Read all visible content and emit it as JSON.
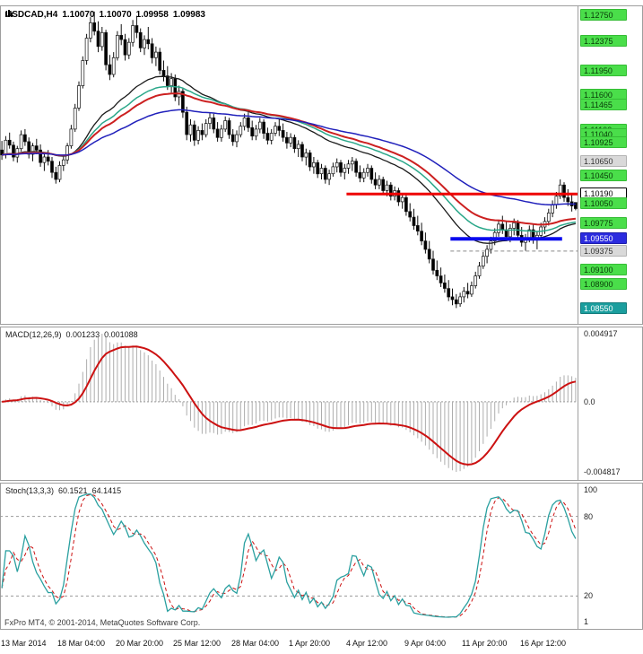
{
  "window": {
    "symbol_period": "USDCAD,H4",
    "ohlc": {
      "open": "1.10070",
      "high": "1.10070",
      "low": "1.09958",
      "close": "1.09983"
    }
  },
  "footer": {
    "copyright": "FxPro MT4, © 2001-2014, MetaQuotes Software Corp."
  },
  "indicators": {
    "macd": {
      "label": "MACD(12,26,9)",
      "value_main": "0.001233",
      "value_signal": "0.001088",
      "axis": {
        "max": "0.004917",
        "zero": "0.0",
        "min": "-0.004817"
      }
    },
    "stoch": {
      "label": "Stoch(13,3,3)",
      "value_k": "60.1521",
      "value_d": "64.1415",
      "axis_values": [
        100,
        80,
        20,
        1
      ],
      "axis_labels": [
        "100",
        "80",
        "20",
        "1"
      ],
      "level_lines": [
        80,
        20
      ]
    }
  },
  "price_axis": {
    "styles": {
      "green": {
        "bg": "#4ade4a",
        "fg": "#083a08",
        "border": "#35bc35"
      },
      "blue": {
        "bg": "#2b2bdf",
        "fg": "#ffffff",
        "border": "#1d1daa"
      },
      "teal": {
        "bg": "#1b9e9e",
        "fg": "#ffffff",
        "border": "#147c7c"
      },
      "grey": {
        "bg": "#d9d9d9",
        "fg": "#333333",
        "border": "#b3b3b3"
      },
      "white": {
        "bg": "#ffffff",
        "fg": "#000000",
        "border": "#000000"
      }
    },
    "badges": [
      {
        "value": "1.12750",
        "price": 1.1275,
        "style": "green"
      },
      {
        "value": "1.12375",
        "price": 1.12375,
        "style": "green"
      },
      {
        "value": "1.11950",
        "price": 1.1195,
        "style": "green"
      },
      {
        "value": "1.11600",
        "price": 1.116,
        "style": "green"
      },
      {
        "value": "1.11465",
        "price": 1.11465,
        "style": "green"
      },
      {
        "value": "1.11100",
        "price": 1.111,
        "style": "green"
      },
      {
        "value": "1.11040",
        "price": 1.1104,
        "style": "green"
      },
      {
        "value": "1.10925",
        "price": 1.10925,
        "style": "green"
      },
      {
        "value": "1.10650",
        "price": 1.1065,
        "style": "grey"
      },
      {
        "value": "1.10450",
        "price": 1.1045,
        "style": "green"
      },
      {
        "value": "1.10190",
        "price": 1.1019,
        "style": "white"
      },
      {
        "value": "1.10050",
        "price": 1.1005,
        "style": "green"
      },
      {
        "value": "1.09775",
        "price": 1.09775,
        "style": "green"
      },
      {
        "value": "1.09550",
        "price": 1.0955,
        "style": "blue"
      },
      {
        "value": "1.09375",
        "price": 1.09375,
        "style": "grey"
      },
      {
        "value": "1.09100",
        "price": 1.091,
        "style": "green"
      },
      {
        "value": "1.08900",
        "price": 1.089,
        "style": "green"
      },
      {
        "value": "1.08550",
        "price": 1.0855,
        "style": "teal"
      }
    ]
  },
  "time_axis": {
    "ticks": [
      {
        "bar": 0,
        "label": "13 Mar 2014"
      },
      {
        "bar": 15,
        "label": "18 Mar 04:00"
      },
      {
        "bar": 30,
        "label": "20 Mar 20:00"
      },
      {
        "bar": 45,
        "label": "25 Mar 12:00"
      },
      {
        "bar": 60,
        "label": "28 Mar 04:00"
      },
      {
        "bar": 75,
        "label": "1 Apr 20:00"
      },
      {
        "bar": 90,
        "label": "4 Apr 12:00"
      },
      {
        "bar": 105,
        "label": "9 Apr 04:00"
      },
      {
        "bar": 120,
        "label": "11 Apr 20:00"
      },
      {
        "bar": 135,
        "label": "16 Apr 12:00"
      }
    ]
  },
  "colors": {
    "background": "#ffffff",
    "panel_border": "#9e9e9e",
    "candle_up_fill": "#ffffff",
    "candle_down_fill": "#000000",
    "candle_outline": "#111111",
    "resistance_line": "#ee0000",
    "support_line": "#0b0bee",
    "dashed_level": "#8a8a8a",
    "macd_histogram": "#adadad",
    "macd_signal": "#cc1111",
    "stoch_k": "#2aa0a0",
    "stoch_d": "#cc1111",
    "grid_dash": "#9a9a9a"
  },
  "chart_data": {
    "type": "candlestick",
    "title": "USDCAD,H4",
    "symbol": "USDCAD",
    "timeframe": "H4",
    "price_range": {
      "top": 1.1285,
      "bottom": 1.0836
    },
    "moving_averages": [
      {
        "name": "ma-black",
        "period": 34,
        "color": "#1a1a1a",
        "width": 1.3
      },
      {
        "name": "ma-green",
        "period": 45,
        "color": "#2aa789",
        "width": 1.5
      },
      {
        "name": "ma-red",
        "period": 55,
        "color": "#cc2020",
        "width": 2
      },
      {
        "name": "ma-blue",
        "period": 90,
        "color": "#2020bb",
        "width": 1.5
      }
    ],
    "hlines": [
      {
        "name": "resistance",
        "price": 1.1019,
        "from_bar": 90,
        "to_bar": 150,
        "color": "#ee0000",
        "width": 3,
        "dash": false
      },
      {
        "name": "support",
        "price": 1.0955,
        "from_bar": 117,
        "to_bar": 146,
        "color": "#0b0bee",
        "width": 4,
        "dash": false
      },
      {
        "name": "minor-level",
        "price": 1.09375,
        "from_bar": 117,
        "to_bar": 150,
        "color": "#8a8a8a",
        "width": 1,
        "dash": true
      }
    ],
    "macd_params": {
      "fast": 12,
      "slow": 26,
      "signal": 9
    },
    "stoch_params": {
      "k": 13,
      "d": 3,
      "slowing": 3
    },
    "candles": [
      [
        1.1082,
        1.1095,
        1.1068,
        1.1075
      ],
      [
        1.1075,
        1.1102,
        1.107,
        1.1096
      ],
      [
        1.1096,
        1.1107,
        1.1084,
        1.1089
      ],
      [
        1.1089,
        1.1094,
        1.1066,
        1.1072
      ],
      [
        1.1072,
        1.1088,
        1.1064,
        1.1084
      ],
      [
        1.1084,
        1.111,
        1.108,
        1.1104
      ],
      [
        1.1104,
        1.1112,
        1.1088,
        1.1094
      ],
      [
        1.1094,
        1.11,
        1.107,
        1.1076
      ],
      [
        1.1076,
        1.1092,
        1.1066,
        1.1088
      ],
      [
        1.1088,
        1.1098,
        1.1076,
        1.1082
      ],
      [
        1.1082,
        1.109,
        1.1058,
        1.1064
      ],
      [
        1.1064,
        1.1078,
        1.1052,
        1.1072
      ],
      [
        1.1072,
        1.1082,
        1.106,
        1.1066
      ],
      [
        1.1066,
        1.1072,
        1.1042,
        1.105
      ],
      [
        1.105,
        1.1058,
        1.1034,
        1.104
      ],
      [
        1.104,
        1.1066,
        1.1036,
        1.106
      ],
      [
        1.106,
        1.1074,
        1.1052,
        1.1068
      ],
      [
        1.1068,
        1.1092,
        1.1062,
        1.1088
      ],
      [
        1.1088,
        1.1118,
        1.1084,
        1.1112
      ],
      [
        1.1112,
        1.1148,
        1.1108,
        1.1142
      ],
      [
        1.1142,
        1.118,
        1.1138,
        1.1174
      ],
      [
        1.1174,
        1.1216,
        1.117,
        1.121
      ],
      [
        1.121,
        1.1248,
        1.1204,
        1.1242
      ],
      [
        1.1242,
        1.1272,
        1.1236,
        1.1264
      ],
      [
        1.1264,
        1.128,
        1.1246,
        1.1252
      ],
      [
        1.1252,
        1.1266,
        1.1222,
        1.123
      ],
      [
        1.123,
        1.1258,
        1.1224,
        1.125
      ],
      [
        1.125,
        1.1254,
        1.1196,
        1.1204
      ],
      [
        1.1204,
        1.1218,
        1.1182,
        1.119
      ],
      [
        1.119,
        1.1222,
        1.1186,
        1.1214
      ],
      [
        1.1214,
        1.1252,
        1.121,
        1.1246
      ],
      [
        1.1246,
        1.1262,
        1.1232,
        1.124
      ],
      [
        1.124,
        1.1248,
        1.121,
        1.1218
      ],
      [
        1.1218,
        1.1242,
        1.1212,
        1.1236
      ],
      [
        1.1236,
        1.1268,
        1.123,
        1.126
      ],
      [
        1.126,
        1.1274,
        1.1242,
        1.125
      ],
      [
        1.125,
        1.1256,
        1.1222,
        1.1228
      ],
      [
        1.1228,
        1.1246,
        1.1218,
        1.124
      ],
      [
        1.124,
        1.1258,
        1.1226,
        1.1234
      ],
      [
        1.1234,
        1.1242,
        1.1206,
        1.1214
      ],
      [
        1.1214,
        1.123,
        1.1202,
        1.1222
      ],
      [
        1.1222,
        1.1228,
        1.119,
        1.1196
      ],
      [
        1.1196,
        1.121,
        1.118,
        1.1188
      ],
      [
        1.1188,
        1.1202,
        1.1168,
        1.1174
      ],
      [
        1.1174,
        1.1192,
        1.1164,
        1.1184
      ],
      [
        1.1184,
        1.119,
        1.1152,
        1.1158
      ],
      [
        1.1158,
        1.1174,
        1.1146,
        1.1166
      ],
      [
        1.1166,
        1.117,
        1.1128,
        1.1136
      ],
      [
        1.1136,
        1.1144,
        1.1096,
        1.1104
      ],
      [
        1.1104,
        1.1126,
        1.1094,
        1.1118
      ],
      [
        1.1118,
        1.1124,
        1.1088,
        1.1096
      ],
      [
        1.1096,
        1.1116,
        1.109,
        1.111
      ],
      [
        1.111,
        1.112,
        1.1096,
        1.1104
      ],
      [
        1.1104,
        1.1126,
        1.11,
        1.112
      ],
      [
        1.112,
        1.1136,
        1.1112,
        1.1128
      ],
      [
        1.1128,
        1.1134,
        1.1106,
        1.1112
      ],
      [
        1.1112,
        1.1122,
        1.1094,
        1.11
      ],
      [
        1.11,
        1.1118,
        1.1094,
        1.1112
      ],
      [
        1.1112,
        1.113,
        1.1108,
        1.1124
      ],
      [
        1.1124,
        1.1128,
        1.1098,
        1.1104
      ],
      [
        1.1104,
        1.1112,
        1.1088,
        1.1094
      ],
      [
        1.1094,
        1.111,
        1.1086,
        1.1104
      ],
      [
        1.1104,
        1.1122,
        1.11,
        1.1116
      ],
      [
        1.1116,
        1.1134,
        1.111,
        1.1128
      ],
      [
        1.1128,
        1.1136,
        1.1108,
        1.1114
      ],
      [
        1.1114,
        1.1124,
        1.1096,
        1.1102
      ],
      [
        1.1102,
        1.1118,
        1.1096,
        1.1112
      ],
      [
        1.1112,
        1.1128,
        1.1106,
        1.1122
      ],
      [
        1.1122,
        1.1126,
        1.1098,
        1.1106
      ],
      [
        1.1106,
        1.1114,
        1.109,
        1.1096
      ],
      [
        1.1096,
        1.1112,
        1.109,
        1.1106
      ],
      [
        1.1106,
        1.1122,
        1.1102,
        1.1116
      ],
      [
        1.1116,
        1.1126,
        1.1102,
        1.111
      ],
      [
        1.111,
        1.112,
        1.1094,
        1.11
      ],
      [
        1.11,
        1.1108,
        1.1084,
        1.1092
      ],
      [
        1.1092,
        1.1106,
        1.1086,
        1.11
      ],
      [
        1.11,
        1.1104,
        1.1078,
        1.1084
      ],
      [
        1.1084,
        1.1096,
        1.1072,
        1.109
      ],
      [
        1.109,
        1.1094,
        1.1066,
        1.1072
      ],
      [
        1.1072,
        1.1084,
        1.106,
        1.1078
      ],
      [
        1.1078,
        1.1082,
        1.1052,
        1.1058
      ],
      [
        1.1058,
        1.1072,
        1.1048,
        1.1064
      ],
      [
        1.1064,
        1.1068,
        1.1042,
        1.1048
      ],
      [
        1.1048,
        1.1062,
        1.104,
        1.1056
      ],
      [
        1.1056,
        1.106,
        1.1034,
        1.104
      ],
      [
        1.104,
        1.1054,
        1.1032,
        1.1048
      ],
      [
        1.1048,
        1.1064,
        1.1044,
        1.1058
      ],
      [
        1.1058,
        1.107,
        1.105,
        1.1064
      ],
      [
        1.1064,
        1.1068,
        1.1044,
        1.105
      ],
      [
        1.105,
        1.1062,
        1.104,
        1.1056
      ],
      [
        1.1056,
        1.1068,
        1.1048,
        1.1062
      ],
      [
        1.1062,
        1.1072,
        1.1052,
        1.1066
      ],
      [
        1.1066,
        1.107,
        1.1044,
        1.105
      ],
      [
        1.105,
        1.106,
        1.1036,
        1.1042
      ],
      [
        1.1042,
        1.1056,
        1.1036,
        1.105
      ],
      [
        1.105,
        1.1062,
        1.1044,
        1.1056
      ],
      [
        1.1056,
        1.106,
        1.1034,
        1.104
      ],
      [
        1.104,
        1.105,
        1.1026,
        1.1032
      ],
      [
        1.1032,
        1.1046,
        1.1026,
        1.104
      ],
      [
        1.104,
        1.1044,
        1.1018,
        1.1024
      ],
      [
        1.1024,
        1.1038,
        1.1016,
        1.1032
      ],
      [
        1.1032,
        1.1036,
        1.101,
        1.1016
      ],
      [
        1.1016,
        1.103,
        1.101,
        1.1024
      ],
      [
        1.1024,
        1.1028,
        1.1002,
        1.1008
      ],
      [
        1.1008,
        1.102,
        1.0998,
        1.1014
      ],
      [
        1.1014,
        1.1018,
        1.0988,
        1.0994
      ],
      [
        1.0994,
        1.1006,
        1.098,
        1.0986
      ],
      [
        1.0986,
        1.0998,
        1.0968,
        1.0974
      ],
      [
        1.0974,
        1.0988,
        1.096,
        1.0966
      ],
      [
        1.0966,
        1.0978,
        1.0946,
        1.0952
      ],
      [
        1.0952,
        1.0964,
        1.0934,
        1.094
      ],
      [
        1.094,
        1.0952,
        1.092,
        1.0926
      ],
      [
        1.0926,
        1.0938,
        1.0904,
        1.091
      ],
      [
        1.091,
        1.0924,
        1.0896,
        1.0902
      ],
      [
        1.0902,
        1.0914,
        1.0886,
        1.0892
      ],
      [
        1.0892,
        1.0904,
        1.0878,
        1.0884
      ],
      [
        1.0884,
        1.0896,
        1.0866,
        1.0872
      ],
      [
        1.0872,
        1.0884,
        1.086,
        1.0868
      ],
      [
        1.0868,
        1.0876,
        1.0856,
        1.0862
      ],
      [
        1.0862,
        1.0878,
        1.0858,
        1.0872
      ],
      [
        1.0872,
        1.0886,
        1.0864,
        1.088
      ],
      [
        1.088,
        1.0892,
        1.087,
        1.0876
      ],
      [
        1.0876,
        1.0894,
        1.0872,
        1.0888
      ],
      [
        1.0888,
        1.0908,
        1.0884,
        1.0902
      ],
      [
        1.0902,
        1.0922,
        1.0898,
        1.0916
      ],
      [
        1.0916,
        1.0936,
        1.0912,
        1.093
      ],
      [
        1.093,
        1.0946,
        1.092,
        1.094
      ],
      [
        1.094,
        1.0958,
        1.0934,
        1.0952
      ],
      [
        1.0952,
        1.097,
        1.0946,
        1.0964
      ],
      [
        1.0964,
        1.0982,
        1.0958,
        1.0976
      ],
      [
        1.0976,
        1.0988,
        1.0962,
        1.0968
      ],
      [
        1.0968,
        1.098,
        1.0952,
        1.0958
      ],
      [
        1.0958,
        1.0976,
        1.095,
        1.097
      ],
      [
        1.097,
        1.0984,
        1.096,
        1.0978
      ],
      [
        1.0978,
        1.0982,
        1.0954,
        1.096
      ],
      [
        1.096,
        1.0972,
        1.0944,
        1.095
      ],
      [
        1.095,
        1.0962,
        1.0938,
        1.0956
      ],
      [
        1.0956,
        1.0974,
        1.095,
        1.0968
      ],
      [
        1.0968,
        1.0976,
        1.0948,
        1.0954
      ],
      [
        1.0954,
        1.0966,
        1.094,
        1.096
      ],
      [
        1.096,
        1.0978,
        1.0954,
        1.0972
      ],
      [
        1.0972,
        1.0986,
        1.0962,
        1.098
      ],
      [
        1.098,
        1.0998,
        1.0974,
        1.0992
      ],
      [
        1.0992,
        1.101,
        1.0986,
        1.1004
      ],
      [
        1.1004,
        1.1022,
        1.0998,
        1.1016
      ],
      [
        1.1016,
        1.104,
        1.1012,
        1.1032
      ],
      [
        1.1032,
        1.1036,
        1.1008,
        1.1014
      ],
      [
        1.1014,
        1.1026,
        1.1002,
        1.1008
      ],
      [
        1.1008,
        1.1018,
        1.0994,
        1.1002
      ],
      [
        1.1007,
        1.1007,
        1.09958,
        1.09983
      ]
    ]
  }
}
